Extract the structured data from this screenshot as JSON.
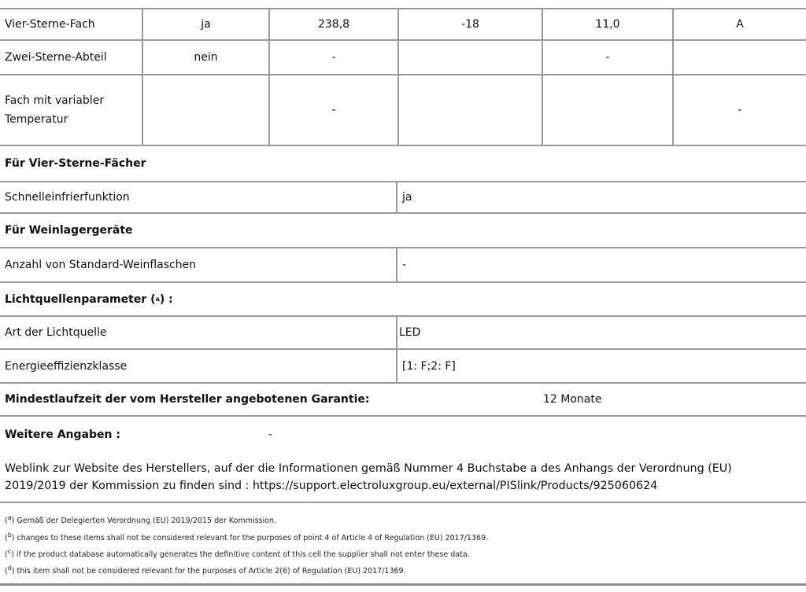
{
  "compartments": [
    {
      "name": "Vier-Sterne-Fach",
      "present": "ja",
      "volume": "238,8",
      "temperature": "-18",
      "energy": "11,0",
      "class": "A"
    },
    {
      "name": "Zwei-Sterne-Abteil",
      "present": "nein",
      "volume": "-",
      "temperature": "",
      "energy": "-",
      "class": ""
    },
    {
      "name": "Fach mit variabler Temperatur",
      "present": "",
      "volume": "-",
      "temperature": "",
      "energy": "",
      "class": "-"
    }
  ],
  "four_star": {
    "heading": "Für Vier-Sterne-Fächer",
    "label": "Schnelleinfrierfunktion",
    "value": "ja"
  },
  "wine": {
    "heading": "Für Weinlagergeräte",
    "label": "Anzahl von Standard-Weinflaschen",
    "value": "-"
  },
  "light": {
    "heading": "Lichtquellenparameter (",
    "marker": "a",
    "heading_end": ") :",
    "type_label": "Art der Lichtquelle",
    "type_value": "LED",
    "class_label": "Energieeffizienzklasse",
    "class_value": "[1: F;2: F]"
  },
  "warranty": {
    "label": "Mindestlaufzeit der vom Hersteller angebotenen Garantie:",
    "value": "12 Monate"
  },
  "further": {
    "label": "Weitere Angaben :",
    "value": "-"
  },
  "weblink": "Weblink zur Website des Herstellers, auf der die Informationen gemäß Nummer 4 Buchstabe a des Anhangs der Verordnung (EU) 2019/2019 der Kommission zu finden sind : https://support.electroluxgroup.eu/external/PISlink/Products/925060624",
  "footnotes": [
    {
      "marker": "a",
      "text": "Gemäß der Delegierten Verordnung (EU) 2019/2015 der Kommission."
    },
    {
      "marker": "b",
      "text": "changes to these items shall not be considered relevant for the purposes of point 4 of Article 4 of Regulation (EU) 2017/1369."
    },
    {
      "marker": "c",
      "text": "if the product database automatically generates the definitive content of this cell the supplier shall not enter these data."
    },
    {
      "marker": "d",
      "text": "this item shall not be considered relevant for the purposes of Article 2(6) of Regulation (EU) 2017/1369."
    }
  ]
}
